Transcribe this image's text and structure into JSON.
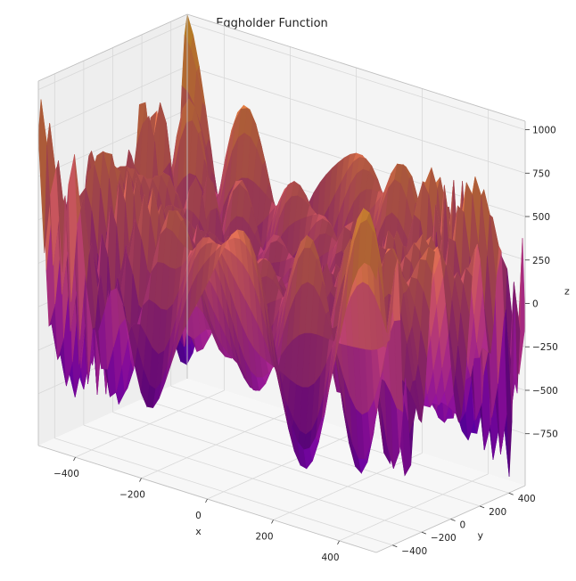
{
  "chart_data": {
    "type": "surface3d",
    "title": "Eggholder Function",
    "function": "z = -(y + 47) * sin(sqrt(|x/2 + y + 47|)) - x * sin(sqrt(|x - (y + 47)|))",
    "colormap": "plasma",
    "x": {
      "label": "x",
      "range": [
        -512,
        512
      ],
      "ticks": [
        -400,
        -200,
        0,
        200,
        400
      ]
    },
    "y": {
      "label": "y",
      "range": [
        -512,
        512
      ],
      "ticks": [
        -400,
        -200,
        0,
        200,
        400
      ]
    },
    "z": {
      "label": "z",
      "range": [
        -1049.1,
        1049.1
      ],
      "ticks": [
        -750,
        -500,
        -250,
        0,
        250,
        500,
        750,
        1000
      ]
    },
    "grid": true,
    "pane_color": "#f2f2f2"
  }
}
